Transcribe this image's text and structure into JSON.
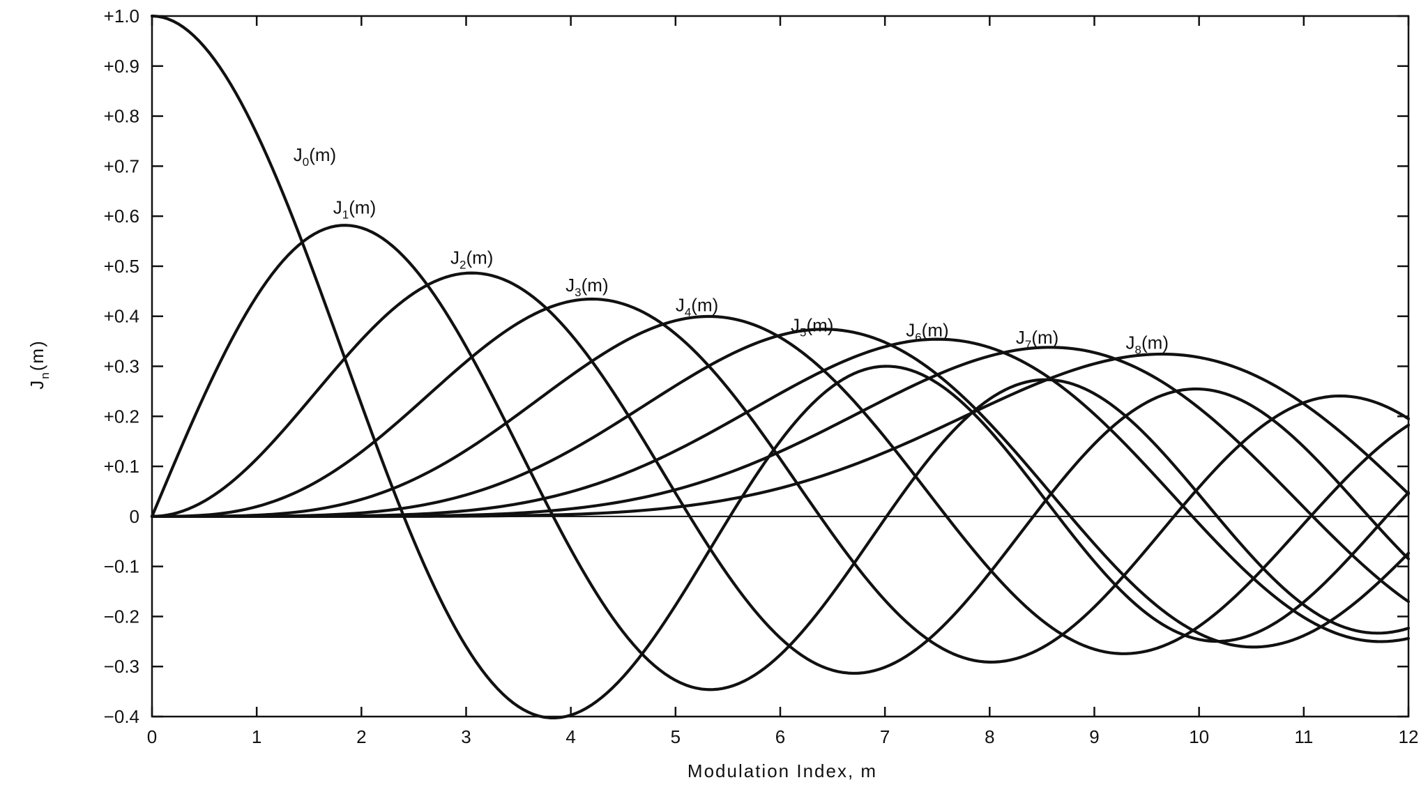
{
  "chart_data": {
    "type": "line",
    "title": "",
    "xlabel": "Modulation Index, m",
    "ylabel_main": "J",
    "ylabel_sub": "n",
    "ylabel_tail": "(m)",
    "xlim": [
      0,
      12
    ],
    "ylim": [
      -0.4,
      1.0
    ],
    "grid": false,
    "legend": "none",
    "x_ticks": [
      0,
      1,
      2,
      3,
      4,
      5,
      6,
      7,
      8,
      9,
      10,
      11,
      12
    ],
    "x_tick_labels": [
      "0",
      "1",
      "2",
      "3",
      "4",
      "5",
      "6",
      "7",
      "8",
      "9",
      "10",
      "11",
      "12"
    ],
    "y_ticks": [
      1.0,
      0.9,
      0.8,
      0.7,
      0.6,
      0.5,
      0.4,
      0.3,
      0.2,
      0.1,
      0,
      -0.1,
      -0.2,
      -0.3,
      -0.4
    ],
    "y_tick_labels": [
      "+1.0",
      "+0.9",
      "+0.8",
      "+0.7",
      "+0.6",
      "+0.5",
      "+0.4",
      "+0.3",
      "+0.2",
      "+0.1",
      "0",
      "−0.1",
      "−0.2",
      "−0.3",
      "−0.4"
    ],
    "series": [
      {
        "name": "J0(m)",
        "label_main": "J",
        "label_sub": "0",
        "label_tail": "(m)",
        "order": 0,
        "label_at": [
          1.35,
          0.71
        ]
      },
      {
        "name": "J1(m)",
        "label_main": "J",
        "label_sub": "1",
        "label_tail": "(m)",
        "order": 1,
        "label_at": [
          1.73,
          0.605
        ]
      },
      {
        "name": "J2(m)",
        "label_main": "J",
        "label_sub": "2",
        "label_tail": "(m)",
        "order": 2,
        "label_at": [
          2.85,
          0.505
        ]
      },
      {
        "name": "J3(m)",
        "label_main": "J",
        "label_sub": "3",
        "label_tail": "(m)",
        "order": 3,
        "label_at": [
          3.95,
          0.45
        ]
      },
      {
        "name": "J4(m)",
        "label_main": "J",
        "label_sub": "4",
        "label_tail": "(m)",
        "order": 4,
        "label_at": [
          5.0,
          0.41
        ]
      },
      {
        "name": "J5(m)",
        "label_main": "J",
        "label_sub": "5",
        "label_tail": "(m)",
        "order": 5,
        "label_at": [
          6.1,
          0.37
        ]
      },
      {
        "name": "J6(m)",
        "label_main": "J",
        "label_sub": "6",
        "label_tail": "(m)",
        "order": 6,
        "label_at": [
          7.2,
          0.36
        ]
      },
      {
        "name": "J7(m)",
        "label_main": "J",
        "label_sub": "7",
        "label_tail": "(m)",
        "order": 7,
        "label_at": [
          8.25,
          0.345
        ]
      },
      {
        "name": "J8(m)",
        "label_main": "J",
        "label_sub": "8",
        "label_tail": "(m)",
        "order": 8,
        "label_at": [
          9.3,
          0.335
        ]
      }
    ],
    "x_sample_step": 0.05
  }
}
